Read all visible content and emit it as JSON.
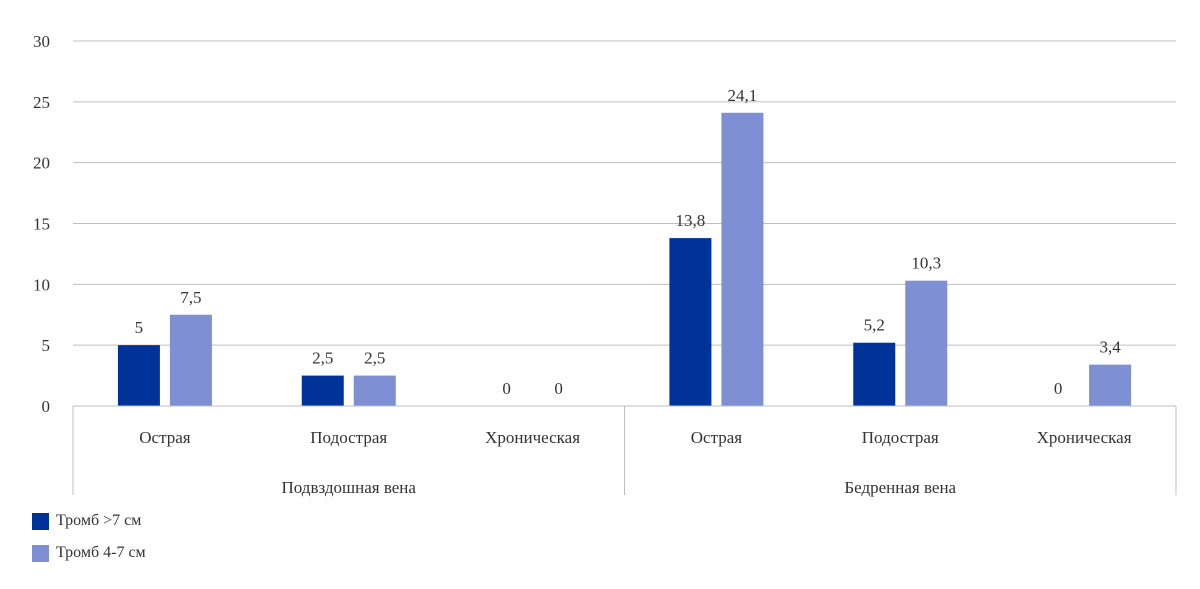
{
  "chart_data": {
    "type": "bar",
    "ylim": [
      0,
      30
    ],
    "yticks": [
      0,
      5,
      10,
      15,
      20,
      25,
      30
    ],
    "grid": true,
    "legend_placement": "bottom-left",
    "groups": [
      {
        "label": "Подвздошная вена",
        "categories": [
          "Острая",
          "Подострая",
          "Хроническая"
        ]
      },
      {
        "label": "Бедренная вена",
        "categories": [
          "Острая",
          "Подострая",
          "Хроническая"
        ]
      }
    ],
    "categories": [
      "Острая",
      "Подострая",
      "Хроническая",
      "Острая",
      "Подострая",
      "Хроническая"
    ],
    "series": [
      {
        "name": "Тромб >7 см",
        "color": "#003399",
        "values": [
          5,
          2.5,
          0,
          13.8,
          5.2,
          0
        ],
        "labels": [
          "5",
          "2,5",
          "0",
          "13,8",
          "5,2",
          "0"
        ]
      },
      {
        "name": "Тромб 4-7 см",
        "color": "#7f8fd3",
        "values": [
          7.5,
          2.5,
          0,
          24.1,
          10.3,
          3.4
        ],
        "labels": [
          "7,5",
          "2,5",
          "0",
          "24,1",
          "10,3",
          "3,4"
        ]
      }
    ]
  }
}
